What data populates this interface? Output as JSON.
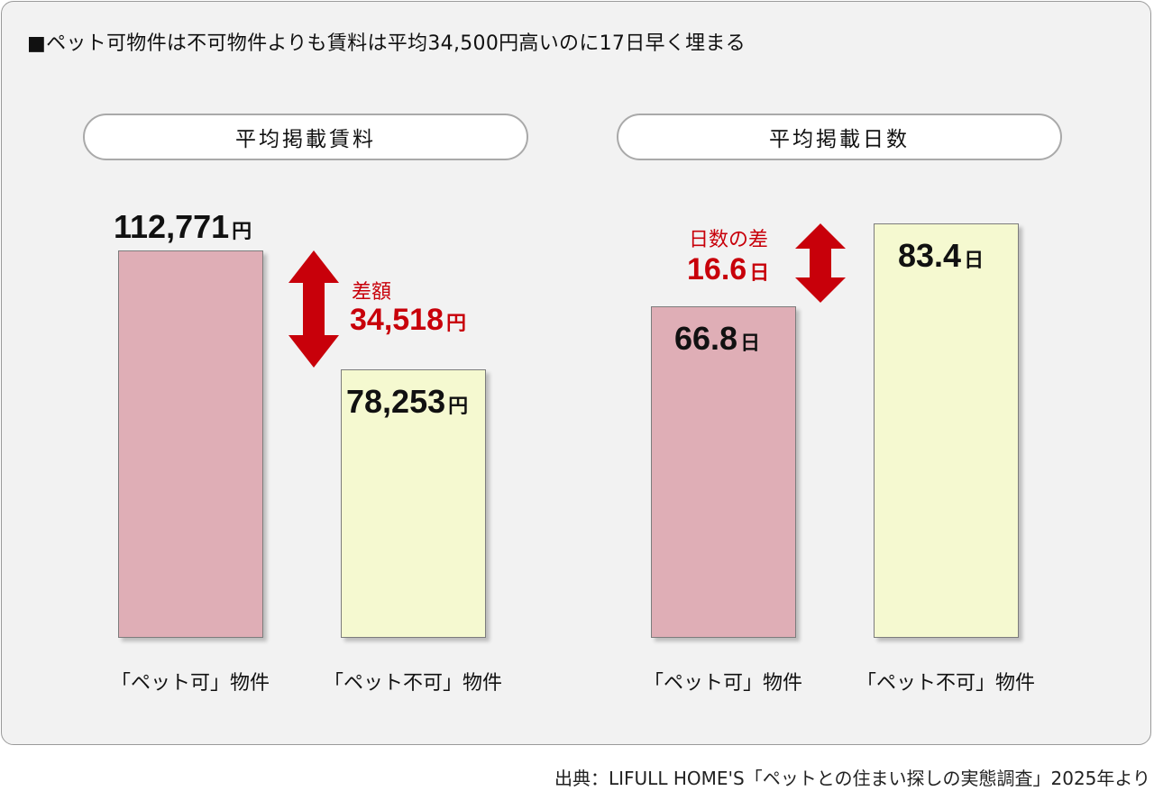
{
  "title": "■ペット可物件は不可物件よりも賃料は平均34,500円高いのに17日早く埋まる",
  "source": "出典：LIFULL HOME'S「ペットとの住まい探しの実態調査」2025年より",
  "chart_data": [
    {
      "type": "bar",
      "title": "平均掲載賃料",
      "categories": [
        "「ペット可」物件",
        "「ペット不可」物件"
      ],
      "values": [
        112771,
        78253
      ],
      "value_labels": [
        "112,771",
        "78,253"
      ],
      "unit": "円",
      "colors": [
        "#dfaeb6",
        "#f5f9d0"
      ],
      "difference": {
        "label": "差額",
        "value": "34,518",
        "unit": "円"
      }
    },
    {
      "type": "bar",
      "title": "平均掲載日数",
      "categories": [
        "「ペット可」物件",
        "「ペット不可」物件"
      ],
      "values": [
        66.8,
        83.4
      ],
      "value_labels": [
        "66.8",
        "83.4"
      ],
      "unit": "日",
      "colors": [
        "#dfaeb6",
        "#f5f9d0"
      ],
      "difference": {
        "label": "日数の差",
        "value": "16.6",
        "unit": "日"
      }
    }
  ]
}
